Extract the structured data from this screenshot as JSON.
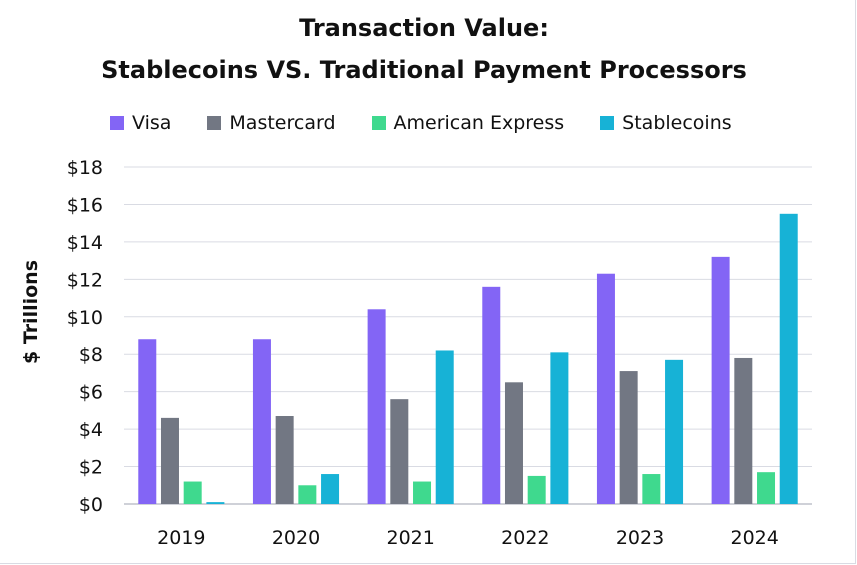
{
  "chart_data": {
    "type": "bar",
    "title_line1": "Transaction Value:",
    "title_line2": "Stablecoins VS. Traditional Payment Processors",
    "xlabel": "",
    "ylabel": "$ Trillions",
    "ylim": [
      0,
      18
    ],
    "yticks": [
      0,
      2,
      4,
      6,
      8,
      10,
      12,
      14,
      16,
      18
    ],
    "ytick_labels": [
      "$0",
      "$2",
      "$4",
      "$6",
      "$8",
      "$10",
      "$12",
      "$14",
      "$16",
      "$18"
    ],
    "categories": [
      "2019",
      "2020",
      "2021",
      "2022",
      "2023",
      "2024"
    ],
    "legend_position": "top",
    "grid": true,
    "series": [
      {
        "name": "Visa",
        "color": "#8365f5",
        "values": [
          8.8,
          8.8,
          10.4,
          11.6,
          12.3,
          13.2
        ]
      },
      {
        "name": "Mastercard",
        "color": "#727783",
        "values": [
          4.6,
          4.7,
          5.6,
          6.5,
          7.1,
          7.8
        ]
      },
      {
        "name": "American Express",
        "color": "#3fd98e",
        "values": [
          1.2,
          1.0,
          1.2,
          1.5,
          1.6,
          1.7
        ]
      },
      {
        "name": "Stablecoins",
        "color": "#17b2d6",
        "values": [
          0.1,
          1.6,
          8.2,
          8.1,
          7.7,
          15.5
        ]
      }
    ],
    "gridline_color": "#d9dbe3",
    "axis_color": "#bfc2cc"
  }
}
